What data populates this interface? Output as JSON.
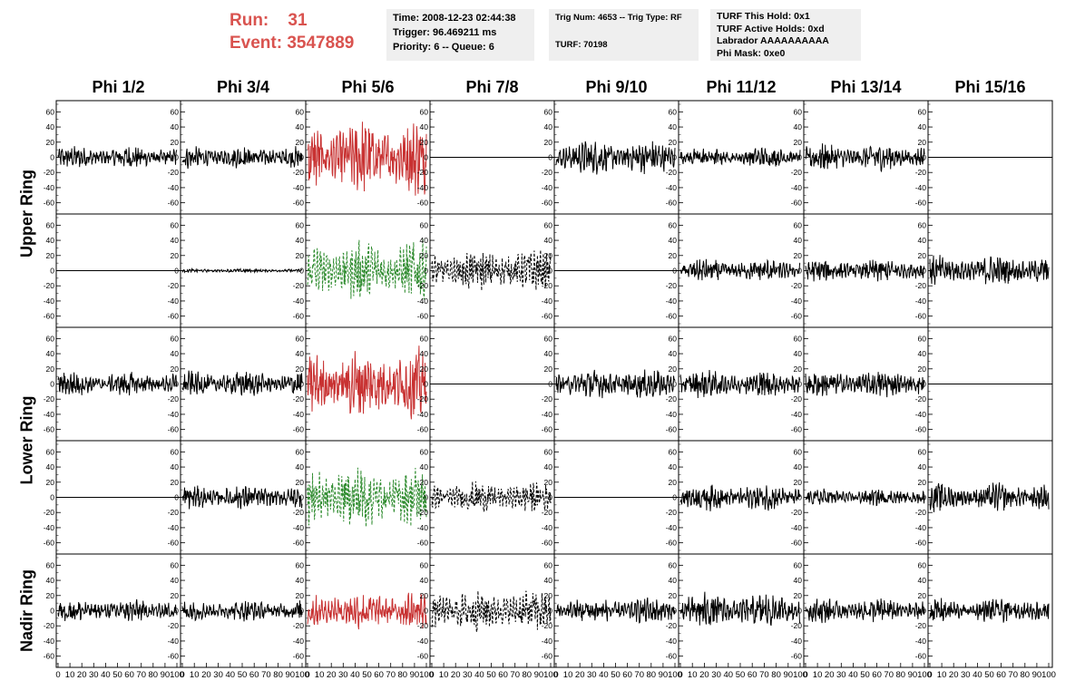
{
  "header": {
    "run_label": "Run:",
    "run_value": "31",
    "event_label": "Event:",
    "event_value": "3547889",
    "box1": [
      "Time: 2008-12-23 02:44:38",
      "Trigger: 96.469211 ms",
      "Priority: 6 -- Queue: 6"
    ],
    "box2": [
      "Trig Num: 4653 -- Trig Type: RF",
      "",
      "TURF: 70198"
    ],
    "box3": [
      "TURF This Hold: 0x1",
      "TURF Active Holds: 0xd",
      "Labrador AAAAAAAAAA",
      "Phi Mask: 0xe0"
    ]
  },
  "chart_data": {
    "type": "line",
    "columns": [
      "Phi 1/2",
      "Phi 3/4",
      "Phi 5/6",
      "Phi 7/8",
      "Phi 9/10",
      "Phi 11/12",
      "Phi 13/14",
      "Phi 15/16"
    ],
    "row_groups": [
      "Upper Ring",
      "Lower Ring",
      "Nadir Ring"
    ],
    "ylim": [
      -70,
      70
    ],
    "xlim": [
      0,
      100
    ],
    "y_ticks": [
      60,
      40,
      20,
      0,
      -20,
      -40,
      -60
    ],
    "x_ticks": [
      0,
      10,
      20,
      30,
      40,
      50,
      60,
      70,
      80,
      90,
      100
    ],
    "colors": {
      "normal": "#000000",
      "triggered": "#c83232",
      "triggered_pol": "#2e8b2e"
    },
    "panels": [
      [
        {
          "amp": 12,
          "style": "solid",
          "color": "normal"
        },
        {
          "amp": 12,
          "style": "solid",
          "color": "normal"
        },
        {
          "amp": 40,
          "style": "solid",
          "color": "triggered"
        },
        {
          "amp": 0,
          "style": "flat",
          "color": "normal"
        },
        {
          "amp": 18,
          "style": "solid",
          "color": "normal"
        },
        {
          "amp": 11,
          "style": "solid",
          "color": "normal"
        },
        {
          "amp": 14,
          "style": "solid",
          "color": "normal"
        },
        {
          "amp": 0,
          "style": "flat",
          "color": "normal"
        }
      ],
      [
        {
          "amp": 0,
          "style": "flat",
          "color": "normal"
        },
        {
          "amp": 2,
          "style": "solid",
          "color": "normal"
        },
        {
          "amp": 32,
          "style": "dashed",
          "color": "triggered_pol"
        },
        {
          "amp": 22,
          "style": "dashed",
          "color": "normal"
        },
        {
          "amp": 0,
          "style": "flat",
          "color": "normal"
        },
        {
          "amp": 12,
          "style": "solid",
          "color": "normal"
        },
        {
          "amp": 12,
          "style": "solid",
          "color": "normal"
        },
        {
          "amp": 16,
          "style": "solid",
          "color": "normal"
        }
      ],
      [
        {
          "amp": 13,
          "style": "solid",
          "color": "normal"
        },
        {
          "amp": 14,
          "style": "solid",
          "color": "normal"
        },
        {
          "amp": 38,
          "style": "solid",
          "color": "triggered"
        },
        {
          "amp": 0,
          "style": "flat",
          "color": "normal"
        },
        {
          "amp": 16,
          "style": "solid",
          "color": "normal"
        },
        {
          "amp": 15,
          "style": "solid",
          "color": "normal"
        },
        {
          "amp": 15,
          "style": "solid",
          "color": "normal"
        },
        {
          "amp": 0,
          "style": "flat",
          "color": "normal"
        }
      ],
      [
        {
          "amp": 0,
          "style": "flat",
          "color": "normal"
        },
        {
          "amp": 13,
          "style": "solid",
          "color": "normal"
        },
        {
          "amp": 33,
          "style": "dashed",
          "color": "triggered_pol"
        },
        {
          "amp": 16,
          "style": "dashed",
          "color": "normal"
        },
        {
          "amp": 0,
          "style": "flat",
          "color": "normal"
        },
        {
          "amp": 14,
          "style": "solid",
          "color": "normal"
        },
        {
          "amp": 9,
          "style": "solid",
          "color": "normal"
        },
        {
          "amp": 15,
          "style": "solid",
          "color": "normal"
        }
      ],
      [
        {
          "amp": 12,
          "style": "solid",
          "color": "normal"
        },
        {
          "amp": 11,
          "style": "solid",
          "color": "normal"
        },
        {
          "amp": 20,
          "style": "solid",
          "color": "triggered"
        },
        {
          "amp": 22,
          "style": "dashed",
          "color": "normal"
        },
        {
          "amp": 14,
          "style": "solid",
          "color": "normal"
        },
        {
          "amp": 19,
          "style": "solid",
          "color": "normal"
        },
        {
          "amp": 13,
          "style": "solid",
          "color": "normal"
        },
        {
          "amp": 13,
          "style": "solid",
          "color": "normal"
        }
      ]
    ]
  }
}
